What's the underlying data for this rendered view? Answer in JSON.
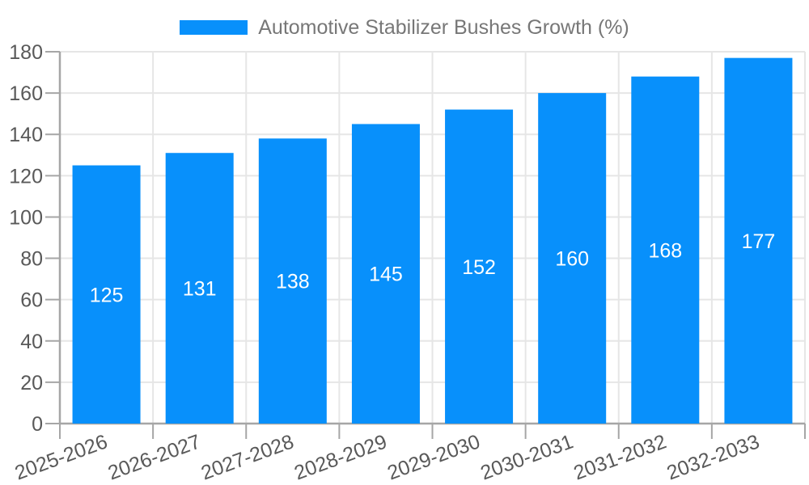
{
  "chart_data": {
    "type": "bar",
    "title": "Automotive Stabilizer Bushes Growth (%)",
    "categories": [
      "2025-2026",
      "2026-2027",
      "2027-2028",
      "2028-2029",
      "2029-2030",
      "2030-2031",
      "2031-2032",
      "2032-2033"
    ],
    "series": [
      {
        "name": "Automotive Stabilizer Bushes Growth (%)",
        "values": [
          125,
          131,
          138,
          145,
          152,
          160,
          168,
          177
        ]
      }
    ],
    "xlabel": "",
    "ylabel": "",
    "ylim": [
      0,
      180
    ],
    "yticks": [
      0,
      20,
      40,
      60,
      80,
      100,
      120,
      140,
      160,
      180
    ],
    "grid": true,
    "legend_position": "top-center",
    "value_label_position": "inside-center",
    "x_label_rotation_deg": -20,
    "colors": {
      "bar": "#0890fb",
      "value_label": "#ffffff",
      "gridline": "#e6e6e6",
      "axis": "#a6a6a6",
      "tick_label": "#595959",
      "legend_text": "#777777",
      "background": "#ffffff"
    }
  }
}
